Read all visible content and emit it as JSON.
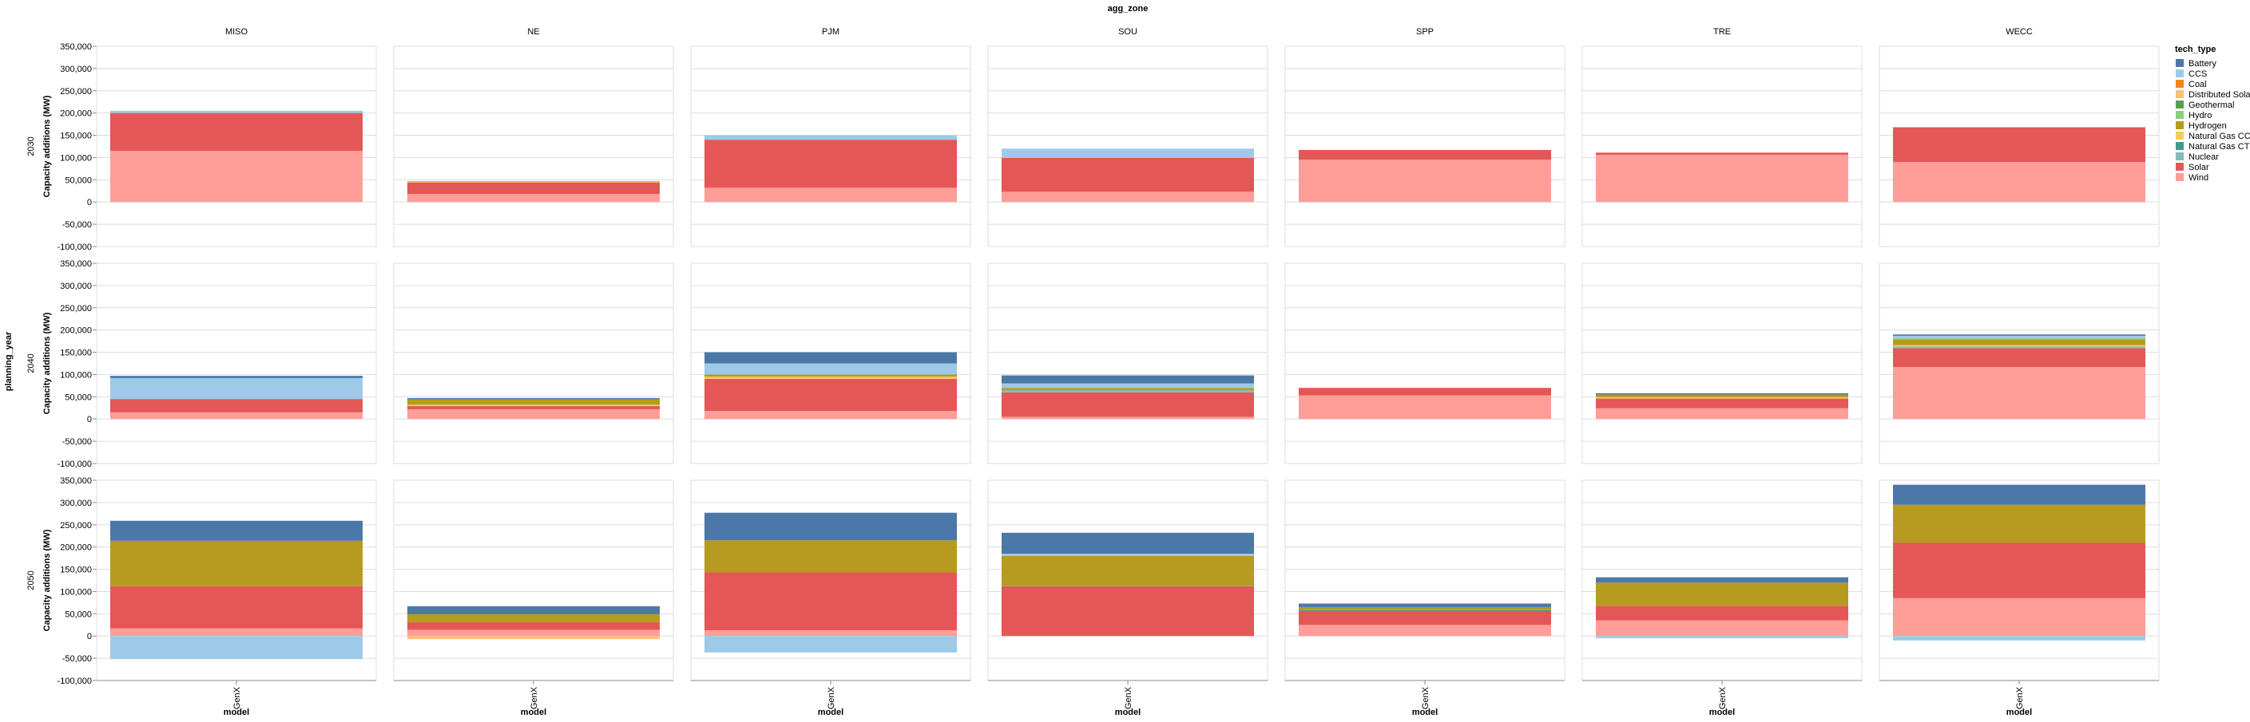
{
  "chart_data": {
    "type": "bar",
    "stacked": true,
    "facet_column_title": "agg_zone",
    "facet_row_title": "planning_year",
    "ylabel": "Capacity additions (MW)",
    "xlabel": "model",
    "x_category": "GenX",
    "columns": [
      "MISO",
      "NE",
      "PJM",
      "SOU",
      "SPP",
      "TRE",
      "WECC"
    ],
    "rows": [
      "2030",
      "2040",
      "2050"
    ],
    "ylim": [
      -100000,
      350000
    ],
    "yticks": [
      -100000,
      -50000,
      0,
      50000,
      100000,
      150000,
      200000,
      250000,
      300000,
      350000
    ],
    "ytick_labels": [
      "-100,000",
      "-50,000",
      "0",
      "50,000",
      "100,000",
      "150,000",
      "200,000",
      "250,000",
      "300,000",
      "350,000"
    ],
    "grid": true,
    "legend_title": "tech_type",
    "legend_position": "right",
    "tech_types": [
      "Battery",
      "CCS",
      "Coal",
      "Distributed Solar",
      "Geothermal",
      "Hydro",
      "Hydrogen",
      "Natural Gas CC",
      "Natural Gas CT",
      "Nuclear",
      "Solar",
      "Wind"
    ],
    "colors": {
      "Battery": "#4c78a8",
      "CCS": "#9ecae9",
      "Coal": "#f58518",
      "Distributed Solar": "#ffbf79",
      "Geothermal": "#54a24b",
      "Hydro": "#88d27a",
      "Hydrogen": "#b79a20",
      "Natural Gas CC": "#f2cf5b",
      "Natural Gas CT": "#439894",
      "Nuclear": "#83bcb6",
      "Solar": "#e45756",
      "Wind": "#ff9d98"
    },
    "stack_order": [
      "Wind",
      "Solar",
      "Nuclear",
      "Natural Gas CT",
      "Natural Gas CC",
      "Hydrogen",
      "Hydro",
      "Geothermal",
      "Distributed Solar",
      "Coal",
      "CCS",
      "Battery"
    ],
    "cells": {
      "2030": {
        "MISO": {
          "Wind": 115000,
          "Solar": 85000,
          "CCS": 5000
        },
        "NE": {
          "Wind": 18000,
          "Solar": 26000,
          "Natural Gas CC": 2000,
          "Hydrogen": 1000
        },
        "PJM": {
          "Wind": 32000,
          "Solar": 108000,
          "CCS": 10000
        },
        "SOU": {
          "Wind": 23000,
          "Solar": 76000,
          "CCS": 21000
        },
        "SPP": {
          "Wind": 95000,
          "Solar": 22000
        },
        "TRE": {
          "Wind": 106000,
          "Solar": 5000
        },
        "WECC": {
          "Wind": 90000,
          "Solar": 78000
        }
      },
      "2040": {
        "MISO": {
          "Wind": 15000,
          "Solar": 30000,
          "CCS": 47000,
          "Battery": 5000
        },
        "NE": {
          "Wind": 22000,
          "Solar": 7000,
          "Natural Gas CC": 3000,
          "Hydrogen": 12000,
          "Battery": 3000
        },
        "PJM": {
          "Wind": 18000,
          "Solar": 72000,
          "Natural Gas CC": 5000,
          "Hydrogen": 5000,
          "CCS": 25000,
          "Battery": 25000
        },
        "SOU": {
          "Wind": 5000,
          "Solar": 55000,
          "Nuclear": 5000,
          "Hydrogen": 5000,
          "CCS": 10000,
          "Battery": 18000
        },
        "SPP": {
          "Wind": 53000,
          "Solar": 17000
        },
        "TRE": {
          "Wind": 24000,
          "Solar": 22000,
          "Natural Gas CC": 3000,
          "Hydrogen": 6000,
          "Battery": 3000
        },
        "WECC": {
          "Wind": 117000,
          "Solar": 42000,
          "Natural Gas CC": 3000,
          "Hydrogen": 13000,
          "Nuclear": 4000,
          "Hydro": 3000,
          "CCS": 5000,
          "Battery": 3000
        }
      },
      "2050": {
        "MISO": {
          "Wind": 17000,
          "Solar": 95000,
          "Hydrogen": 102000,
          "Battery": 45000,
          "CCS": -52000
        },
        "NE": {
          "Wind": 14000,
          "Solar": 17000,
          "Hydrogen": 18000,
          "Battery": 18000,
          "Distributed Solar": -7000
        },
        "PJM": {
          "Wind": 13000,
          "Solar": 130000,
          "Hydrogen": 72000,
          "Battery": 62000,
          "CCS": -37000
        },
        "SOU": {
          "Solar": 112000,
          "CCS": 5000,
          "Hydrogen": 67000,
          "Battery": 47000,
          "Natural Gas CT": 1000
        },
        "SPP": {
          "Wind": 25000,
          "Solar": 30000,
          "Hydrogen": 7000,
          "Natural Gas CT": 3000,
          "Battery": 8000
        },
        "TRE": {
          "Wind": 35000,
          "Solar": 33000,
          "Hydrogen": 52000,
          "Battery": 12000,
          "CCS": -5000
        },
        "WECC": {
          "Wind": 85000,
          "Solar": 125000,
          "Hydrogen": 85000,
          "Battery": 45000,
          "CCS": -10000
        }
      }
    }
  }
}
